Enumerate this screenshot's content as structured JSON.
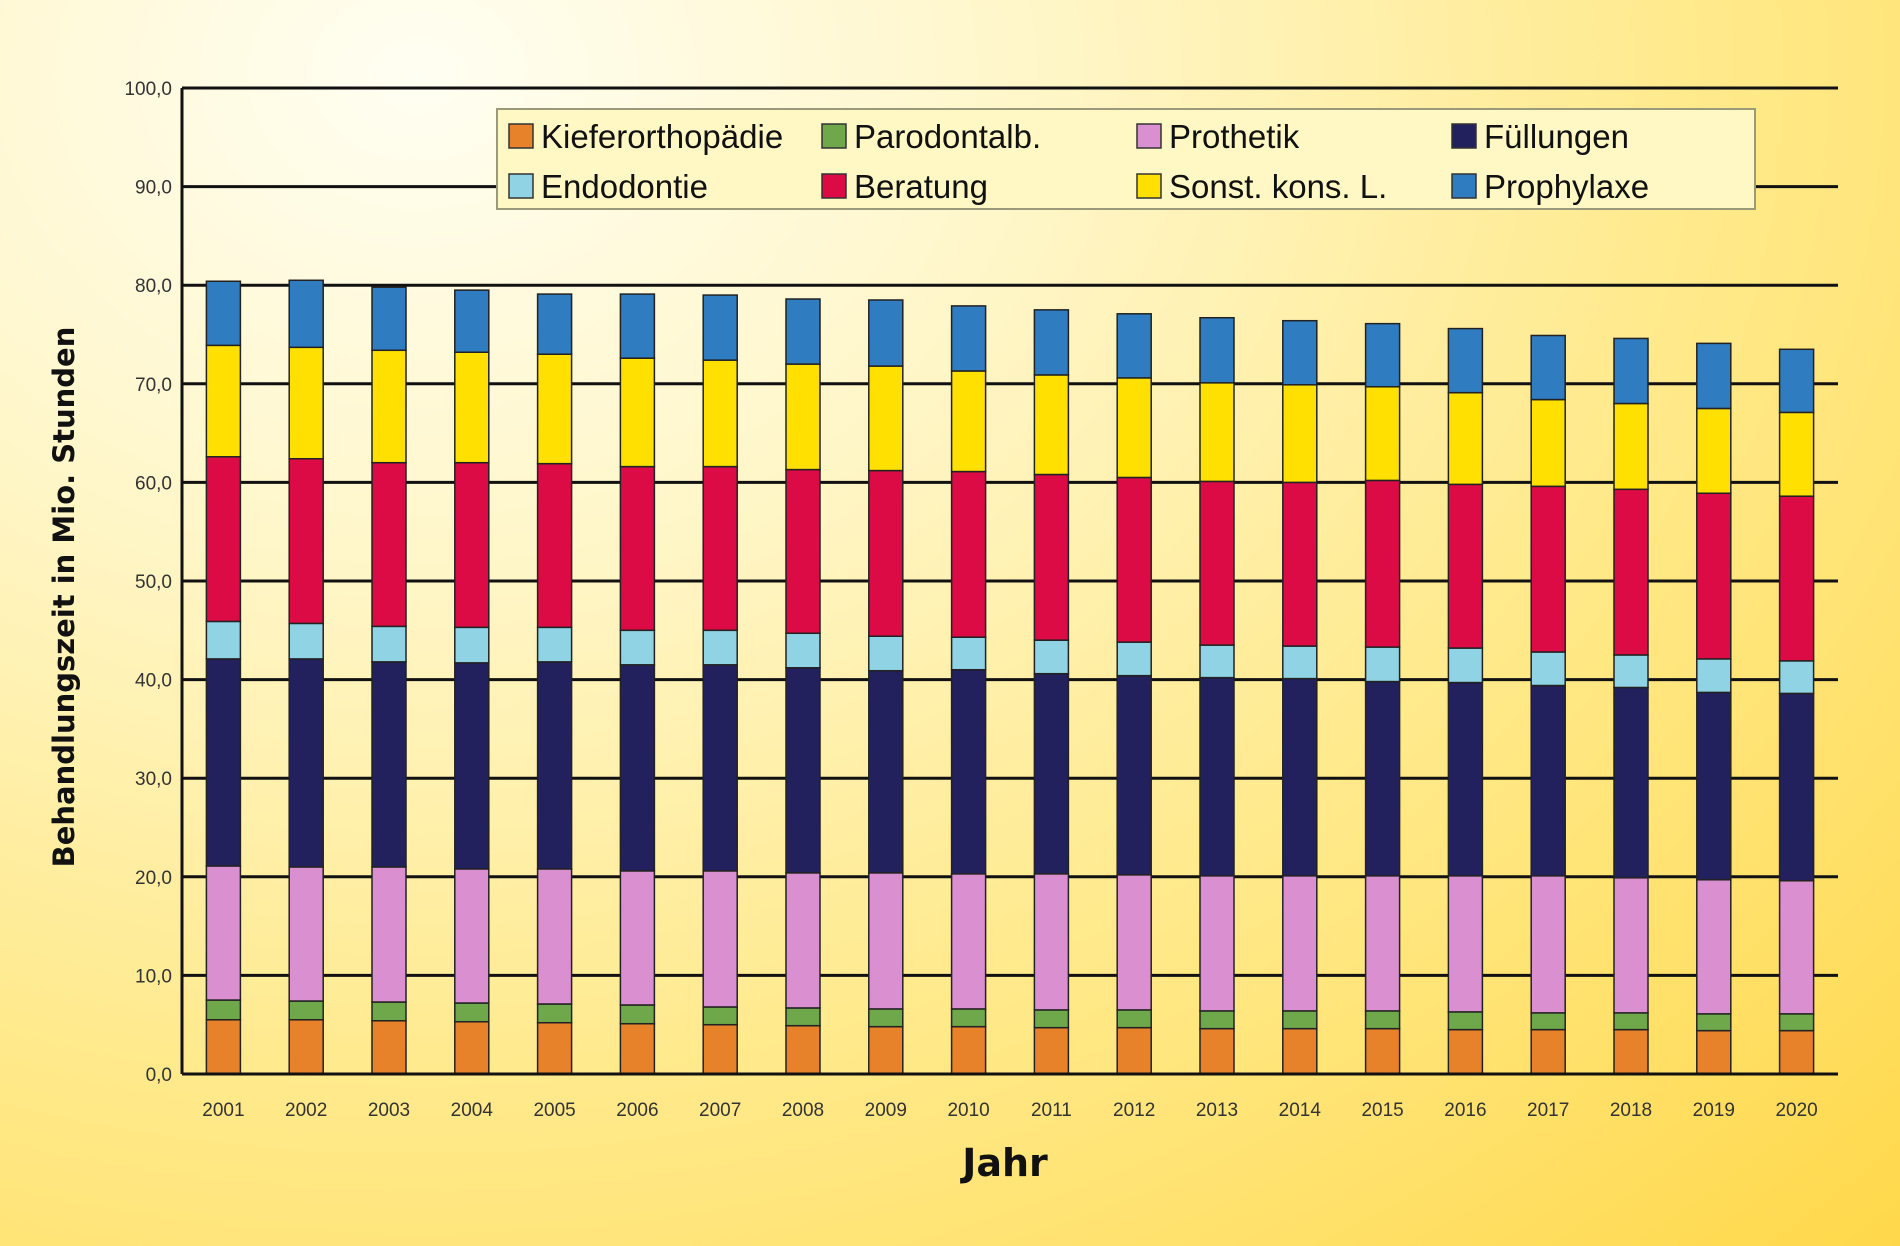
{
  "chart_data": {
    "type": "bar",
    "stacked": true,
    "xlabel": "Jahr",
    "ylabel": "Behandlungszeit in Mio. Stunden",
    "ylim": [
      0,
      100
    ],
    "ytick_values": [
      0,
      10,
      20,
      30,
      40,
      50,
      60,
      70,
      80,
      90,
      100
    ],
    "ytick_labels": [
      "0,0",
      "10,0",
      "20,0",
      "30,0",
      "40,0",
      "50,0",
      "60,0",
      "70,0",
      "80,0",
      "90,0",
      "100,0"
    ],
    "grid": true,
    "legend_position": "top",
    "categories": [
      "2001",
      "2002",
      "2003",
      "2004",
      "2005",
      "2006",
      "2007",
      "2008",
      "2009",
      "2010",
      "2011",
      "2012",
      "2013",
      "2014",
      "2015",
      "2016",
      "2017",
      "2018",
      "2019",
      "2020"
    ],
    "series": [
      {
        "name": "Kieferorthopädie",
        "color": "#e8822a",
        "values": [
          5.5,
          5.5,
          5.4,
          5.3,
          5.2,
          5.1,
          5.0,
          4.9,
          4.8,
          4.8,
          4.7,
          4.7,
          4.6,
          4.6,
          4.6,
          4.5,
          4.5,
          4.5,
          4.4,
          4.4
        ]
      },
      {
        "name": "Parodontalb.",
        "color": "#6fa84b",
        "values": [
          2.0,
          1.9,
          1.9,
          1.9,
          1.9,
          1.9,
          1.8,
          1.8,
          1.8,
          1.8,
          1.8,
          1.8,
          1.8,
          1.8,
          1.8,
          1.8,
          1.7,
          1.7,
          1.7,
          1.7
        ]
      },
      {
        "name": "Prothetik",
        "color": "#d98fd0",
        "values": [
          13.6,
          13.6,
          13.7,
          13.6,
          13.7,
          13.6,
          13.8,
          13.7,
          13.8,
          13.7,
          13.8,
          13.7,
          13.7,
          13.7,
          13.7,
          13.8,
          13.9,
          13.7,
          13.6,
          13.5
        ]
      },
      {
        "name": "Füllungen",
        "color": "#23205e",
        "values": [
          21.0,
          21.1,
          20.8,
          20.9,
          21.0,
          20.9,
          20.9,
          20.8,
          20.5,
          20.7,
          20.3,
          20.2,
          20.1,
          20.0,
          19.7,
          19.6,
          19.3,
          19.3,
          19.0,
          19.0
        ]
      },
      {
        "name": "Endodontie",
        "color": "#8fd3e5",
        "values": [
          3.8,
          3.6,
          3.6,
          3.6,
          3.5,
          3.5,
          3.5,
          3.5,
          3.5,
          3.3,
          3.4,
          3.4,
          3.3,
          3.3,
          3.5,
          3.5,
          3.4,
          3.3,
          3.4,
          3.3
        ]
      },
      {
        "name": "Beratung",
        "color": "#dd0b45",
        "values": [
          16.7,
          16.7,
          16.6,
          16.7,
          16.6,
          16.6,
          16.6,
          16.6,
          16.8,
          16.8,
          16.8,
          16.7,
          16.6,
          16.6,
          16.9,
          16.6,
          16.8,
          16.8,
          16.8,
          16.7
        ]
      },
      {
        "name": "Sonst. kons. L.",
        "color": "#ffe000",
        "values": [
          11.3,
          11.3,
          11.4,
          11.2,
          11.1,
          11.0,
          10.8,
          10.7,
          10.6,
          10.2,
          10.1,
          10.1,
          10.0,
          9.9,
          9.5,
          9.3,
          8.8,
          8.7,
          8.6,
          8.5
        ]
      },
      {
        "name": "Prophylaxe",
        "color": "#2f7cc0",
        "values": [
          6.5,
          6.8,
          6.4,
          6.3,
          6.1,
          6.5,
          6.6,
          6.6,
          6.7,
          6.6,
          6.6,
          6.5,
          6.6,
          6.5,
          6.4,
          6.5,
          6.5,
          6.6,
          6.6,
          6.4
        ]
      }
    ]
  }
}
